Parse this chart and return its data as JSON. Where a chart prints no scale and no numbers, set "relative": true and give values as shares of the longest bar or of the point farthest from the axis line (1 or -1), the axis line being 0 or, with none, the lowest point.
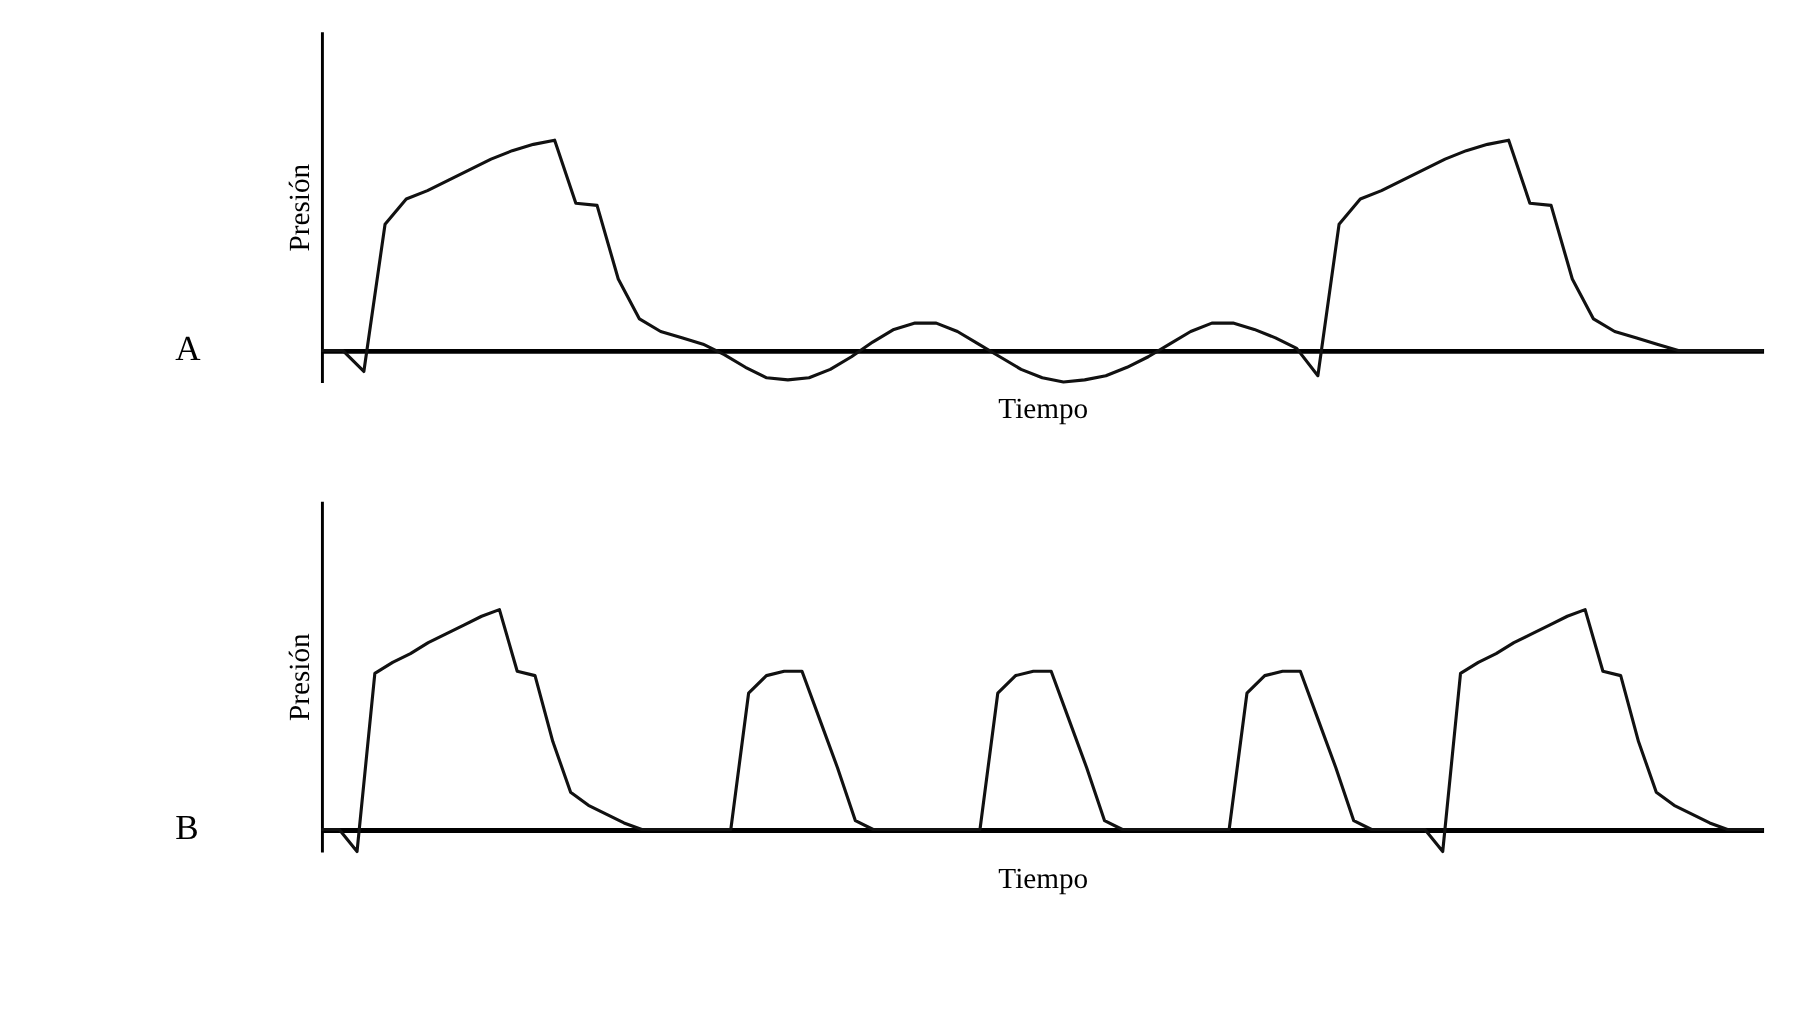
{
  "chart_data": [
    {
      "type": "line",
      "relative": true,
      "xlabel": "Tiempo",
      "ylabel": "Presión",
      "annotations": [
        "A"
      ],
      "tick_labels": false,
      "grid": false,
      "marker": "none",
      "line_style": "solid",
      "categories": [
        null,
        null,
        null,
        null,
        null,
        null,
        null,
        null,
        null,
        null,
        null,
        null,
        null,
        null,
        null,
        null,
        null,
        null,
        null,
        null,
        null,
        null,
        null,
        null,
        null,
        null,
        null,
        null,
        null,
        null,
        null,
        null,
        null,
        null,
        null,
        null,
        null,
        null,
        null,
        null,
        null,
        null,
        null,
        null,
        null,
        null,
        null,
        null,
        null,
        null,
        null,
        null,
        null,
        null,
        null,
        null,
        null,
        null,
        null,
        null,
        null,
        null,
        null,
        null,
        null,
        null,
        null,
        null,
        null
      ],
      "series": [
        {
          "color": "#111111",
          "values": [
            0,
            0,
            -0.1,
            0.6,
            0.72,
            0.76,
            0.81,
            0.86,
            0.91,
            0.95,
            0.98,
            1.0,
            0.7,
            0.69,
            0.34,
            0.15,
            0.09,
            0.06,
            0.03,
            -0.02,
            -0.08,
            -0.13,
            -0.14,
            -0.13,
            -0.09,
            -0.03,
            0.04,
            0.1,
            0.13,
            0.13,
            0.09,
            0.03,
            -0.03,
            -0.09,
            -0.13,
            -0.15,
            -0.14,
            -0.12,
            -0.08,
            -0.03,
            0.03,
            0.09,
            0.13,
            0.13,
            0.1,
            0.06,
            0.01,
            -0.12,
            0.6,
            0.72,
            0.76,
            0.81,
            0.86,
            0.91,
            0.95,
            0.98,
            1.0,
            0.7,
            0.69,
            0.34,
            0.15,
            0.09,
            0.06,
            0.03,
            0,
            0,
            0,
            0,
            0
          ]
        }
      ]
    },
    {
      "type": "line",
      "relative": true,
      "xlabel": "Tiempo",
      "ylabel": "Presión",
      "annotations": [
        "B"
      ],
      "tick_labels": false,
      "grid": false,
      "marker": "none",
      "line_style": "solid",
      "categories": [
        null,
        null,
        null,
        null,
        null,
        null,
        null,
        null,
        null,
        null,
        null,
        null,
        null,
        null,
        null,
        null,
        null,
        null,
        null,
        null,
        null,
        null,
        null,
        null,
        null,
        null,
        null,
        null,
        null,
        null,
        null,
        null,
        null,
        null,
        null,
        null,
        null,
        null,
        null,
        null,
        null,
        null,
        null,
        null,
        null,
        null,
        null,
        null,
        null,
        null,
        null,
        null,
        null,
        null,
        null,
        null,
        null,
        null,
        null,
        null,
        null,
        null,
        null,
        null,
        null,
        null,
        null,
        null,
        null,
        null,
        null,
        null,
        null,
        null,
        null,
        null,
        null,
        null,
        null,
        null,
        null,
        null
      ],
      "series": [
        {
          "color": "#111111",
          "values": [
            0,
            0,
            -0.1,
            0.71,
            0.76,
            0.8,
            0.85,
            0.89,
            0.93,
            0.97,
            1.0,
            0.72,
            0.7,
            0.4,
            0.17,
            0.11,
            0.07,
            0.03,
            0,
            0,
            0,
            0,
            0,
            0,
            0.62,
            0.7,
            0.72,
            0.72,
            0.5,
            0.28,
            0.04,
            0,
            0,
            0,
            0,
            0,
            0,
            0,
            0.62,
            0.7,
            0.72,
            0.72,
            0.5,
            0.28,
            0.04,
            0,
            0,
            0,
            0,
            0,
            0,
            0,
            0.62,
            0.7,
            0.72,
            0.72,
            0.5,
            0.28,
            0.04,
            0,
            0,
            0,
            0,
            -0.1,
            0.71,
            0.76,
            0.8,
            0.85,
            0.89,
            0.93,
            0.97,
            1.0,
            0.72,
            0.7,
            0.4,
            0.17,
            0.11,
            0.07,
            0.03,
            0,
            0,
            0
          ]
        }
      ]
    }
  ]
}
